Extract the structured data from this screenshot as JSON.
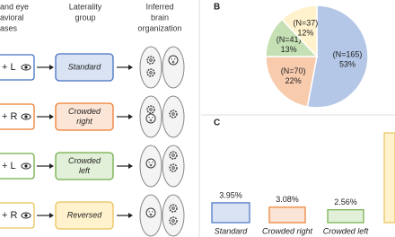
{
  "panel_a": {
    "headers": [
      [
        "and eye",
        "avioral",
        "ases"
      ],
      [
        "Laterality",
        "group"
      ],
      [
        "Inferred",
        "brain",
        "organization"
      ]
    ],
    "rows": [
      {
        "hand": "+ L",
        "group": [
          "Standard"
        ]
      },
      {
        "hand": "+ R",
        "group": [
          "Crowded",
          "right"
        ]
      },
      {
        "hand": "+ L",
        "group": [
          "Crowded",
          "left"
        ]
      },
      {
        "hand": "+ R",
        "group": [
          "Reversed"
        ]
      }
    ]
  },
  "chart_data": [
    {
      "type": "pie",
      "label": "B",
      "categories": [
        "(N=165)",
        "(N=70)",
        "(N=41)",
        "(N=37)"
      ],
      "values": [
        53,
        22,
        13,
        12
      ],
      "value_labels": [
        "53%",
        "22%",
        "13%",
        "12%"
      ],
      "colors": [
        "#b4c7e7",
        "#f8cbad",
        "#c5e0b4",
        "#fff2cc"
      ]
    },
    {
      "type": "bar",
      "label": "C",
      "categories": [
        "Standard",
        "Crowded right",
        "Crowded left",
        null
      ],
      "values": [
        3.95,
        3.08,
        2.56,
        17.9
      ],
      "value_labels": [
        "3.95%",
        "3.08%",
        "2.56%",
        null
      ],
      "colors": [
        "#dae3f3",
        "#fbe5d6",
        "#e2f0d9",
        "#fff2cc"
      ]
    }
  ]
}
